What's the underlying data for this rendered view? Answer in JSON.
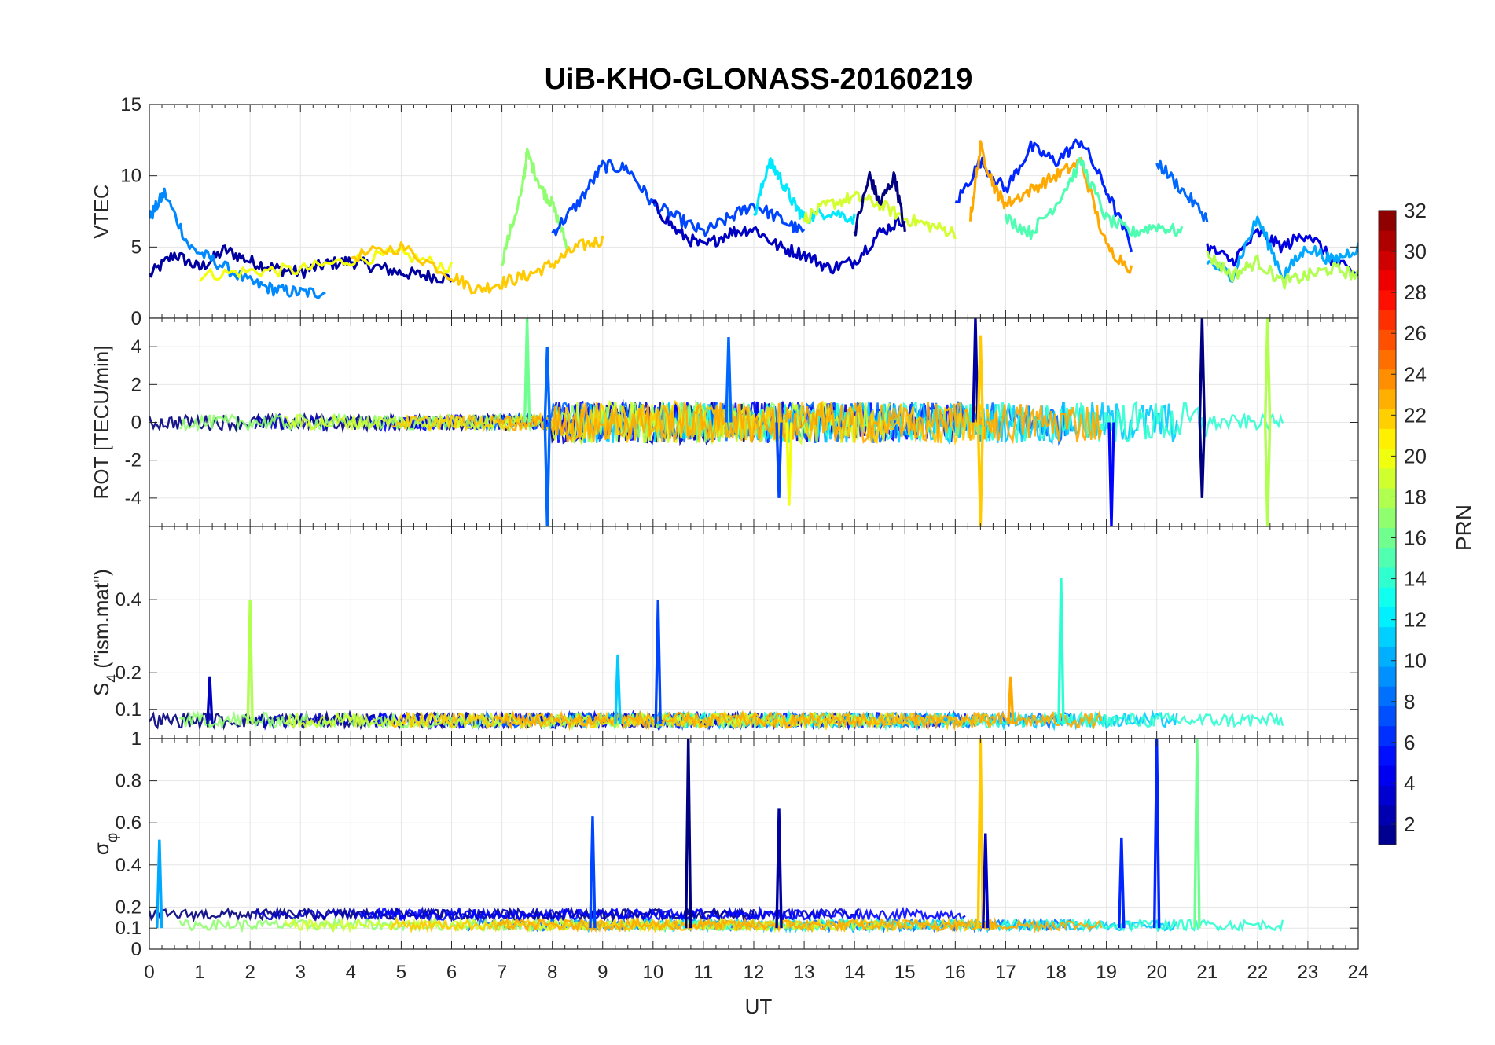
{
  "chart_data": {
    "type": "line",
    "title": "UiB-KHO-GLONASS-20160219",
    "xlabel": "UT",
    "xlim": [
      0,
      24
    ],
    "xticks": [
      0,
      1,
      2,
      3,
      4,
      5,
      6,
      7,
      8,
      9,
      10,
      11,
      12,
      13,
      14,
      15,
      16,
      17,
      18,
      19,
      20,
      21,
      22,
      23,
      24
    ],
    "grid": true,
    "colorbar": {
      "label": "PRN",
      "range": [
        1,
        32
      ],
      "ticks": [
        2,
        4,
        6,
        8,
        10,
        12,
        14,
        16,
        18,
        20,
        22,
        24,
        26,
        28,
        30,
        32
      ],
      "colormap": "jet"
    },
    "panels": [
      {
        "id": "vtec",
        "ylabel": "VTEC",
        "ylim": [
          0,
          15
        ],
        "yticks": [
          0,
          5,
          10,
          15
        ],
        "series": [
          {
            "prn": 2,
            "x": [
              0,
              0.5,
              1,
              1.5,
              2,
              2.5,
              3,
              3.5,
              4,
              4.5,
              5,
              5.5,
              6
            ],
            "y": [
              3,
              4.5,
              3.5,
              4.8,
              4,
              3.5,
              3.2,
              3.8,
              4,
              3.6,
              3.2,
              3,
              2.8
            ]
          },
          {
            "prn": 9,
            "x": [
              0,
              0.3,
              0.8,
              1.3,
              2,
              2.5,
              3,
              3.5
            ],
            "y": [
              7,
              8.8,
              5,
              4,
              2.5,
              2,
              1.8,
              1.8
            ]
          },
          {
            "prn": 20,
            "x": [
              1,
              2,
              3,
              4,
              5,
              6
            ],
            "y": [
              3,
              3.3,
              3.4,
              4.1,
              4.5,
              3.5
            ]
          },
          {
            "prn": 22,
            "x": [
              4,
              5,
              6,
              6.5,
              7,
              7.5,
              8,
              8.5,
              9
            ],
            "y": [
              4.3,
              5,
              3,
              2,
              2.5,
              3,
              3.8,
              5,
              5.5
            ]
          },
          {
            "prn": 17,
            "x": [
              7,
              7.4,
              7.5,
              7.8,
              8,
              8.3
            ],
            "y": [
              4,
              9,
              11.6,
              9,
              8,
              5
            ]
          },
          {
            "prn": 7,
            "x": [
              8,
              8.5,
              9,
              9.5,
              10,
              10.5,
              11,
              11.5,
              12,
              12.5,
              13
            ],
            "y": [
              6,
              8,
              10.7,
              10.5,
              8,
              7,
              6,
              7,
              8,
              7,
              6
            ]
          },
          {
            "prn": 3,
            "x": [
              10,
              10.5,
              11,
              11.5,
              12,
              12.5,
              13,
              13.5,
              14,
              14.5,
              15
            ],
            "y": [
              8,
              6,
              5,
              6,
              6.3,
              5,
              4.5,
              3.5,
              4,
              6,
              7
            ]
          },
          {
            "prn": 12,
            "x": [
              12,
              12.3,
              12.5,
              12.8,
              13,
              13.5,
              14
            ],
            "y": [
              7,
              11,
              10,
              8,
              7,
              7.5,
              7
            ]
          },
          {
            "prn": 19,
            "x": [
              13,
              13.5,
              14,
              14.5,
              15,
              15.5,
              16
            ],
            "y": [
              7,
              8,
              8.5,
              8,
              7,
              6.5,
              6
            ]
          },
          {
            "prn": 1,
            "x": [
              14,
              14.3,
              14.5,
              14.8,
              15
            ],
            "y": [
              6,
              10,
              8,
              10,
              6
            ]
          },
          {
            "prn": 6,
            "x": [
              16,
              16.5,
              17,
              17.5,
              18,
              18.5,
              19,
              19.5
            ],
            "y": [
              8,
              11,
              9,
              12,
              11,
              12.5,
              9,
              5
            ]
          },
          {
            "prn": 23,
            "x": [
              16.3,
              16.5,
              16.8,
              17,
              17.5,
              18,
              18.5,
              19,
              19.5
            ],
            "y": [
              7,
              12,
              9,
              8,
              9,
              10,
              11,
              5,
              3.5
            ]
          },
          {
            "prn": 15,
            "x": [
              17,
              17.5,
              18,
              18.5,
              19,
              19.5,
              20,
              20.5
            ],
            "y": [
              7,
              6,
              8,
              11,
              7,
              6,
              6.5,
              6
            ]
          },
          {
            "prn": 8,
            "x": [
              20,
              20.5,
              21
            ],
            "y": [
              11,
              9,
              7
            ]
          },
          {
            "prn": 4,
            "x": [
              21,
              21.5,
              22,
              22.5,
              23,
              23.5,
              24
            ],
            "y": [
              5,
              4,
              6,
              5,
              6,
              4,
              3
            ]
          },
          {
            "prn": 10,
            "x": [
              21,
              21.5,
              22,
              22.5,
              23,
              23.5,
              24
            ],
            "y": [
              4,
              3,
              7,
              3,
              5,
              4,
              5
            ]
          },
          {
            "prn": 18,
            "x": [
              21,
              21.5,
              22,
              22.5,
              23,
              23.5,
              24
            ],
            "y": [
              4.5,
              3,
              4,
              2.5,
              3,
              3.5,
              3
            ]
          }
        ]
      },
      {
        "id": "rot",
        "ylabel": "ROT [TECU/min]",
        "ylim": [
          -5.5,
          5.5
        ],
        "yticks": [
          -4,
          -2,
          0,
          2,
          4
        ],
        "spikes": [
          {
            "prn": 16,
            "x": 7.5,
            "y": 5.5
          },
          {
            "prn": 8,
            "x": 7.9,
            "y": -5.5
          },
          {
            "prn": 8,
            "x": 7.9,
            "y": 4
          },
          {
            "prn": 7,
            "x": 12.5,
            "y": -4
          },
          {
            "prn": 8,
            "x": 11.5,
            "y": 4.5
          },
          {
            "prn": 20,
            "x": 12.7,
            "y": -4.4
          },
          {
            "prn": 2,
            "x": 16.4,
            "y": 5.5
          },
          {
            "prn": 22,
            "x": 16.5,
            "y": -5.5
          },
          {
            "prn": 22,
            "x": 16.5,
            "y": 4.6
          },
          {
            "prn": 5,
            "x": 19.1,
            "y": -5.5
          },
          {
            "prn": 1,
            "x": 20.9,
            "y": 5.5
          },
          {
            "prn": 1,
            "x": 20.9,
            "y": -4
          },
          {
            "prn": 18,
            "x": 22.2,
            "y": 5.5
          },
          {
            "prn": 18,
            "x": 22.2,
            "y": -5.5
          }
        ]
      },
      {
        "id": "s4",
        "ylabel": "S4 (\"ism.mat\")",
        "ylabel_main": "S",
        "ylabel_sub": "4",
        "ylabel_rest": " (\"ism.mat\")",
        "ylim": [
          0.02,
          0.6
        ],
        "yticks": [
          0.1,
          0.2,
          0.4
        ],
        "spikes": [
          {
            "prn": 3,
            "x": 1.2,
            "y": 0.19
          },
          {
            "prn": 18,
            "x": 2.0,
            "y": 0.4
          },
          {
            "prn": 11,
            "x": 9.3,
            "y": 0.25
          },
          {
            "prn": 7,
            "x": 10.1,
            "y": 0.4
          },
          {
            "prn": 23,
            "x": 17.1,
            "y": 0.19
          },
          {
            "prn": 14,
            "x": 18.1,
            "y": 0.46
          }
        ]
      },
      {
        "id": "sigma",
        "ylabel": "σφ",
        "ylabel_main": "σ",
        "ylabel_sub": "φ",
        "ylim": [
          0,
          1
        ],
        "yticks": [
          0,
          0.1,
          0.2,
          0.4,
          0.6,
          0.8,
          1
        ],
        "spikes": [
          {
            "prn": 10,
            "x": 0.2,
            "y": 0.52
          },
          {
            "prn": 7,
            "x": 8.8,
            "y": 0.63
          },
          {
            "prn": 1,
            "x": 10.7,
            "y": 1.0
          },
          {
            "prn": 2,
            "x": 12.5,
            "y": 0.67
          },
          {
            "prn": 22,
            "x": 16.5,
            "y": 1.0
          },
          {
            "prn": 3,
            "x": 16.6,
            "y": 0.55
          },
          {
            "prn": 6,
            "x": 19.3,
            "y": 0.53
          },
          {
            "prn": 6,
            "x": 20.0,
            "y": 1.0
          },
          {
            "prn": 16,
            "x": 20.8,
            "y": 1.0
          }
        ]
      }
    ]
  }
}
